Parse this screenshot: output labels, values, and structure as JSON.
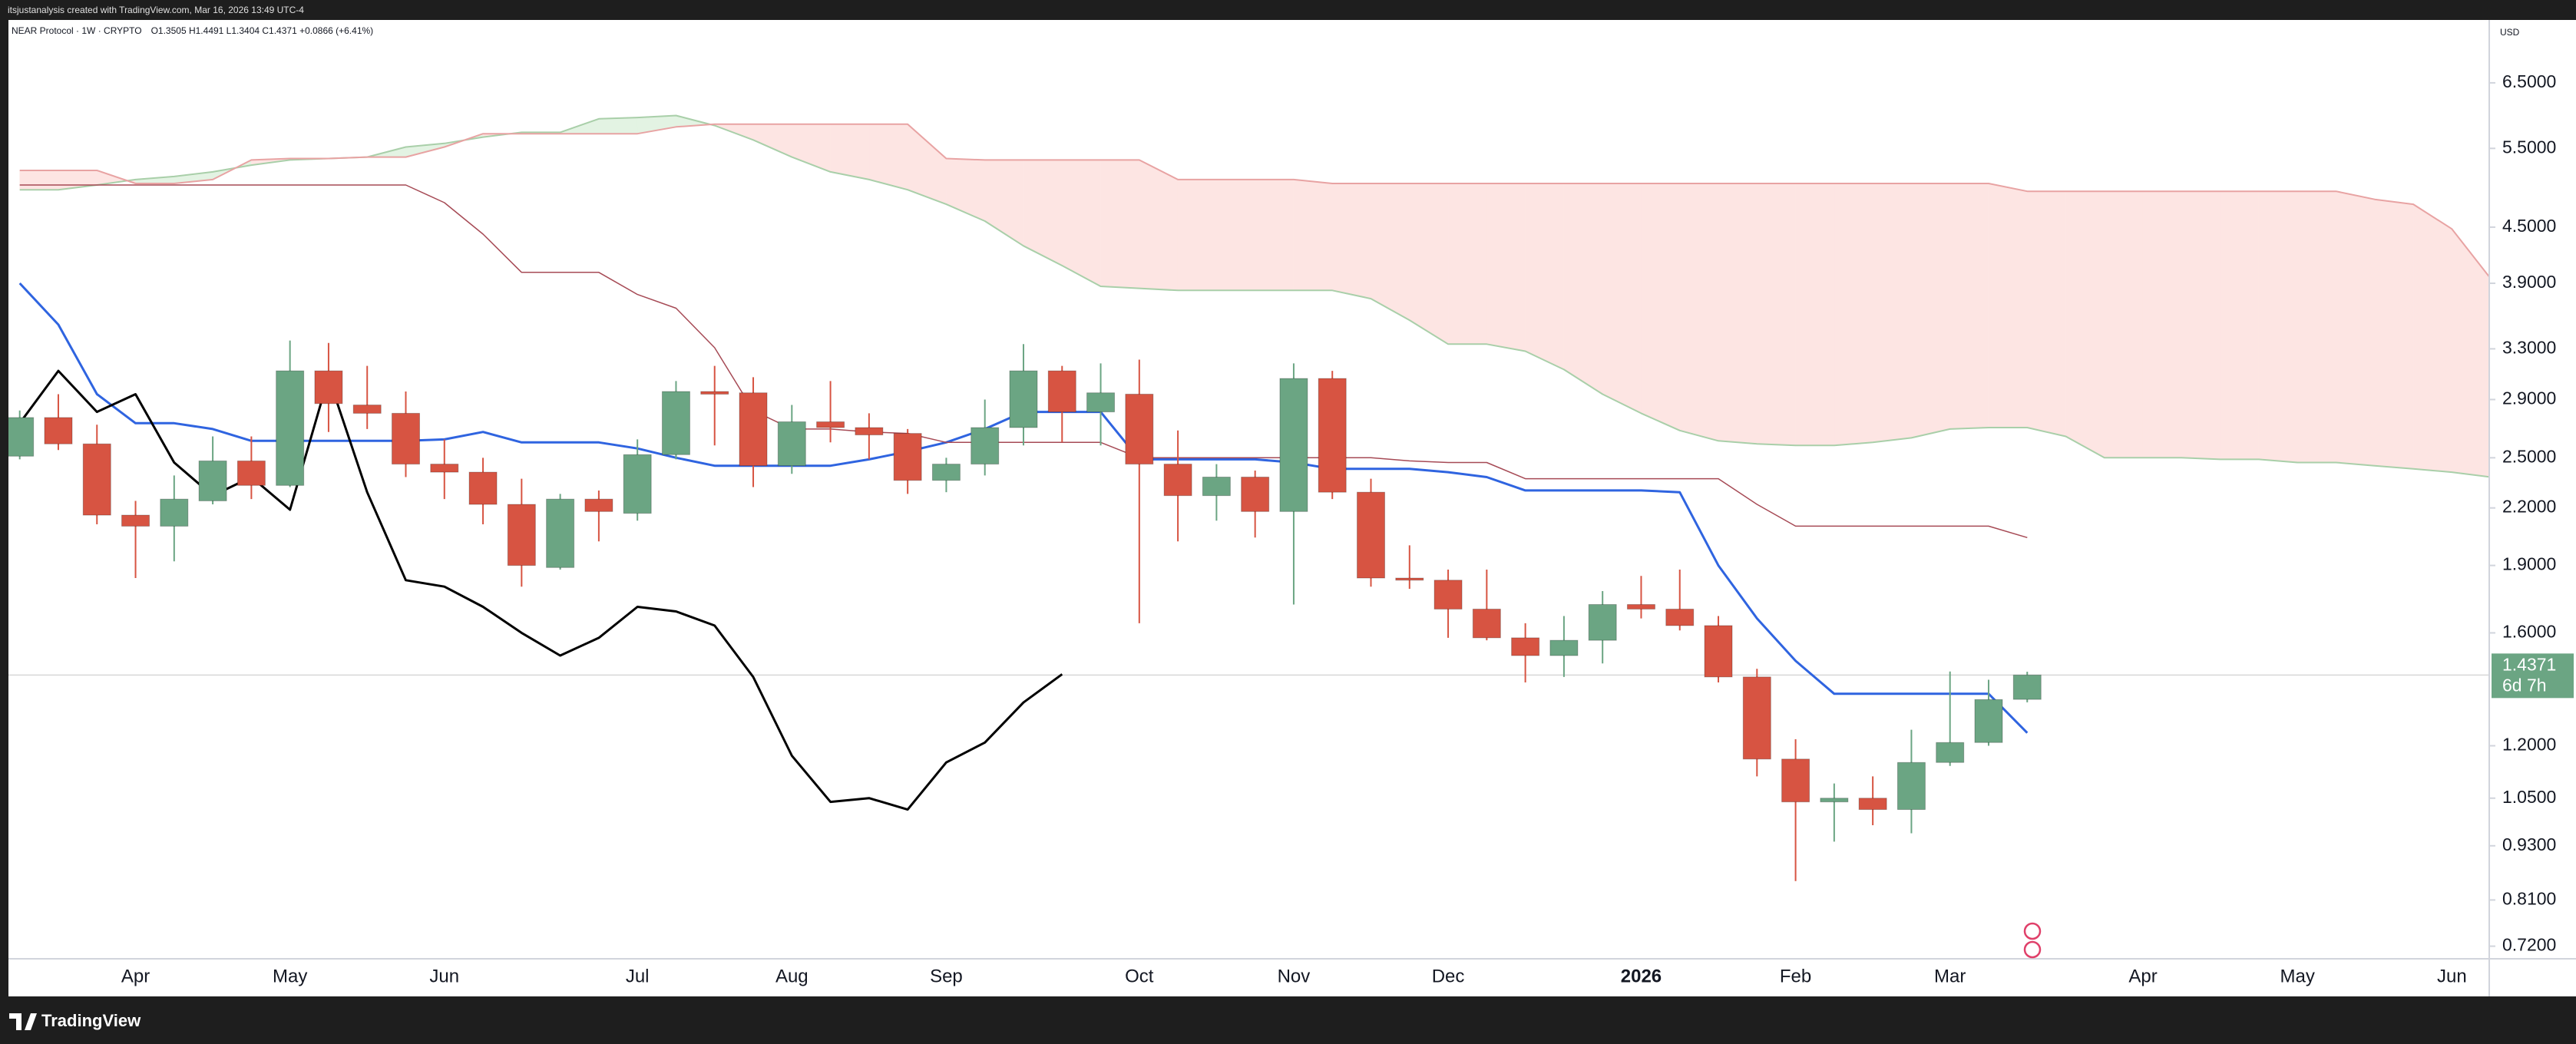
{
  "top_bar": {
    "text": "itsjustanalysis created with TradingView.com, Mar 16, 2026 13:49 UTC-4"
  },
  "footer": {
    "brand": "TradingView"
  },
  "chart_data": {
    "type": "candlestick",
    "symbol": "NEAR Protocol · 1W · CRYPTO",
    "ohlc_text": "O1.3505 H1.4491 L1.3404 C1.4371 +0.0866 (+6.41%)",
    "currency": "USD",
    "log_scale": true,
    "grid": false,
    "up_color": "#6ba583",
    "down_color": "#d75442",
    "ylim": [
      0.7,
      7.6
    ],
    "yticks": [
      {
        "value": 6.5,
        "label": "6.5000"
      },
      {
        "value": 5.5,
        "label": "5.5000"
      },
      {
        "value": 4.5,
        "label": "4.5000"
      },
      {
        "value": 3.9,
        "label": "3.9000"
      },
      {
        "value": 3.3,
        "label": "3.3000"
      },
      {
        "value": 2.9,
        "label": "2.9000"
      },
      {
        "value": 2.5,
        "label": "2.5000"
      },
      {
        "value": 2.2,
        "label": "2.2000"
      },
      {
        "value": 1.9,
        "label": "1.9000"
      },
      {
        "value": 1.6,
        "label": "1.6000"
      },
      {
        "value": 1.2,
        "label": "1.2000"
      },
      {
        "value": 1.05,
        "label": "1.0500"
      },
      {
        "value": 0.93,
        "label": "0.9300"
      },
      {
        "value": 0.81,
        "label": "0.8100"
      },
      {
        "value": 0.72,
        "label": "0.7200"
      }
    ],
    "categories": [
      null,
      null,
      null,
      "Apr",
      null,
      null,
      null,
      "May",
      null,
      null,
      null,
      "Jun",
      null,
      null,
      null,
      null,
      "Jul",
      null,
      null,
      null,
      "Aug",
      null,
      null,
      null,
      "Sep",
      null,
      null,
      null,
      null,
      "Oct",
      null,
      null,
      null,
      "Nov",
      null,
      null,
      null,
      "Dec",
      null,
      null,
      null,
      null,
      "2026",
      null,
      null,
      null,
      "Feb",
      null,
      null,
      null,
      "Mar",
      null,
      null,
      null,
      null,
      "Apr",
      null,
      null,
      null,
      "May",
      null,
      null,
      null,
      "Jun",
      null
    ],
    "open": [
      2.51,
      2.77,
      2.59,
      2.16,
      2.1,
      2.24,
      2.48,
      2.33,
      3.12,
      2.86,
      2.8,
      2.46,
      2.41,
      2.22,
      1.89,
      2.25,
      2.17,
      2.52,
      2.96,
      2.95,
      2.45,
      2.74,
      2.7,
      2.66,
      2.36,
      2.46,
      2.7,
      3.12,
      2.81,
      2.94,
      2.46,
      2.27,
      2.38,
      2.18,
      3.06,
      2.29,
      1.84,
      1.83,
      1.7,
      1.58,
      1.51,
      1.57,
      1.72,
      1.7,
      1.63,
      1.43,
      1.16,
      1.04,
      1.05,
      1.02,
      1.15,
      1.21,
      1.3505,
      null,
      null,
      null,
      null,
      null,
      null,
      null,
      null,
      null,
      null,
      null,
      null
    ],
    "high": [
      2.82,
      2.94,
      2.72,
      2.24,
      2.39,
      2.64,
      2.64,
      3.37,
      3.35,
      3.16,
      2.96,
      2.62,
      2.5,
      2.37,
      2.28,
      2.3,
      2.62,
      3.04,
      3.16,
      3.07,
      2.86,
      3.04,
      2.8,
      2.69,
      2.5,
      2.9,
      3.34,
      3.16,
      3.18,
      3.21,
      2.68,
      2.46,
      2.42,
      3.18,
      3.12,
      2.37,
      2.0,
      1.88,
      1.88,
      1.64,
      1.67,
      1.78,
      1.85,
      1.88,
      1.67,
      1.46,
      1.22,
      1.09,
      1.11,
      1.25,
      1.45,
      1.42,
      1.4491,
      null,
      null,
      null,
      null,
      null,
      null,
      null,
      null,
      null,
      null,
      null,
      null
    ],
    "low": [
      2.49,
      2.55,
      2.11,
      1.84,
      1.92,
      2.22,
      2.25,
      2.32,
      2.67,
      2.69,
      2.38,
      2.25,
      2.11,
      1.8,
      1.88,
      2.02,
      2.13,
      2.49,
      2.58,
      2.32,
      2.4,
      2.6,
      2.49,
      2.28,
      2.29,
      2.39,
      2.58,
      2.6,
      2.58,
      1.64,
      2.02,
      2.13,
      2.04,
      1.72,
      2.25,
      1.8,
      1.79,
      1.58,
      1.57,
      1.41,
      1.43,
      1.48,
      1.66,
      1.61,
      1.41,
      1.11,
      0.85,
      0.94,
      0.98,
      0.96,
      1.14,
      1.2,
      1.3404,
      null,
      null,
      null,
      null,
      null,
      null,
      null,
      null,
      null,
      null,
      null,
      null
    ],
    "close": [
      2.77,
      2.59,
      2.16,
      2.1,
      2.25,
      2.48,
      2.33,
      3.12,
      2.87,
      2.8,
      2.46,
      2.41,
      2.22,
      1.9,
      2.25,
      2.18,
      2.52,
      2.96,
      2.94,
      2.45,
      2.74,
      2.7,
      2.65,
      2.36,
      2.46,
      2.7,
      3.12,
      2.81,
      2.95,
      2.46,
      2.27,
      2.38,
      2.18,
      3.06,
      2.29,
      1.84,
      1.83,
      1.7,
      1.58,
      1.51,
      1.57,
      1.72,
      1.7,
      1.63,
      1.43,
      1.16,
      1.04,
      1.05,
      1.02,
      1.15,
      1.21,
      1.35,
      1.4371,
      null,
      null,
      null,
      null,
      null,
      null,
      null,
      null,
      null,
      null,
      null,
      null
    ],
    "lines": [
      {
        "color": "#2f64e0",
        "values": [
          3.9,
          3.51,
          2.94,
          2.73,
          2.73,
          2.69,
          2.61,
          2.61,
          2.61,
          2.61,
          2.61,
          2.62,
          2.67,
          2.6,
          2.6,
          2.6,
          2.56,
          2.5,
          2.45,
          2.45,
          2.45,
          2.45,
          2.49,
          2.54,
          2.6,
          2.69,
          2.81,
          2.81,
          2.81,
          2.49,
          2.49,
          2.49,
          2.49,
          2.47,
          2.43,
          2.43,
          2.43,
          2.41,
          2.38,
          2.3,
          2.3,
          2.3,
          2.3,
          2.29,
          1.9,
          1.66,
          1.49,
          1.37,
          1.37,
          1.37,
          1.37,
          1.37,
          1.24,
          null,
          null,
          null,
          null,
          null,
          null,
          null,
          null,
          null,
          null,
          null,
          null
        ]
      },
      {
        "color": "#000000",
        "values": [
          2.73,
          3.12,
          2.81,
          2.94,
          2.47,
          2.27,
          2.38,
          2.19,
          3.07,
          2.29,
          1.83,
          1.8,
          1.71,
          1.6,
          1.51,
          1.58,
          1.71,
          1.69,
          1.63,
          1.43,
          1.17,
          1.04,
          1.05,
          1.02,
          1.15,
          1.21,
          1.34,
          1.44,
          null,
          null,
          null,
          null,
          null,
          null,
          null,
          null,
          null,
          null,
          null,
          null,
          null,
          null,
          null,
          null,
          null,
          null,
          null,
          null,
          null,
          null,
          null,
          null,
          null,
          null,
          null,
          null,
          null,
          null,
          null,
          null,
          null,
          null,
          null,
          null,
          null
        ]
      },
      {
        "color": "#a64a55",
        "values": [
          5.01,
          5.01,
          5.01,
          5.01,
          5.01,
          5.01,
          5.01,
          5.01,
          5.01,
          5.01,
          5.01,
          4.79,
          4.42,
          4.01,
          4.01,
          4.01,
          3.79,
          3.66,
          3.31,
          2.82,
          2.69,
          2.69,
          2.67,
          2.66,
          2.6,
          2.6,
          2.6,
          2.6,
          2.6,
          2.5,
          2.5,
          2.5,
          2.5,
          2.5,
          2.5,
          2.5,
          2.48,
          2.47,
          2.47,
          2.37,
          2.37,
          2.37,
          2.37,
          2.37,
          2.37,
          2.22,
          2.1,
          2.1,
          2.1,
          2.1,
          2.1,
          2.1,
          2.04,
          null,
          null,
          null,
          null,
          null,
          null,
          null,
          null,
          null,
          null,
          null,
          null
        ]
      }
    ],
    "cloud": {
      "up_color": "#e3f3e3",
      "down_color": "#fde5e3",
      "span_a_color": "#a9cfa9",
      "span_b_color": "#e8a3a3",
      "span_a": [
        4.95,
        4.95,
        5.01,
        5.08,
        5.12,
        5.18,
        5.27,
        5.34,
        5.36,
        5.38,
        5.52,
        5.57,
        5.66,
        5.73,
        5.73,
        5.93,
        5.95,
        5.98,
        5.83,
        5.62,
        5.38,
        5.18,
        5.08,
        4.95,
        4.77,
        4.57,
        4.29,
        4.08,
        3.87,
        3.85,
        3.83,
        3.83,
        3.83,
        3.83,
        3.83,
        3.75,
        3.55,
        3.34,
        3.34,
        3.28,
        3.13,
        2.94,
        2.8,
        2.68,
        2.61,
        2.59,
        2.58,
        2.58,
        2.6,
        2.63,
        2.69,
        2.7,
        2.7,
        2.64,
        2.5,
        2.5,
        2.5,
        2.49,
        2.49,
        2.47,
        2.47,
        2.45,
        2.43,
        2.41,
        2.38
      ],
      "span_b": [
        5.2,
        5.2,
        5.2,
        5.03,
        5.03,
        5.08,
        5.34,
        5.36,
        5.36,
        5.38,
        5.38,
        5.52,
        5.71,
        5.71,
        5.71,
        5.71,
        5.71,
        5.81,
        5.85,
        5.85,
        5.85,
        5.85,
        5.85,
        5.85,
        5.36,
        5.34,
        5.34,
        5.34,
        5.34,
        5.34,
        5.08,
        5.08,
        5.08,
        5.08,
        5.03,
        5.03,
        5.03,
        5.03,
        5.03,
        5.03,
        5.03,
        5.03,
        5.03,
        5.03,
        5.03,
        5.03,
        5.03,
        5.03,
        5.03,
        5.03,
        5.03,
        5.03,
        4.93,
        4.93,
        4.93,
        4.93,
        4.93,
        4.93,
        4.93,
        4.93,
        4.93,
        4.83,
        4.77,
        4.48,
        3.95
      ]
    },
    "last_price": 1.4371,
    "last_price_color": "#6ba583",
    "countdown": "6d 7h"
  }
}
